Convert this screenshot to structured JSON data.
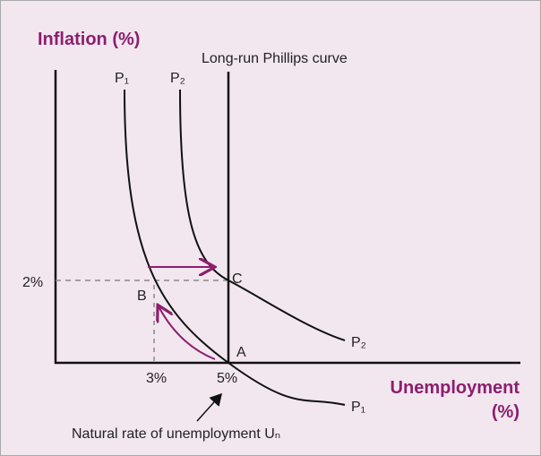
{
  "y_axis_label": "Inflation (%)",
  "x_axis_label": {
    "line1": "Unemployment",
    "line2": "(%)"
  },
  "lrpc_label": "Long-run Phillips curve",
  "curve_labels": {
    "p1_top": "P₁",
    "p2_top": "P₂",
    "p1_end": "P₁",
    "p2_end": "P₂"
  },
  "points": {
    "a": "A",
    "b": "B",
    "c": "C"
  },
  "ticks": {
    "y_2": "2%",
    "x_3": "3%",
    "x_5": "5%"
  },
  "annotation": "Natural rate of unemployment Uₙ"
}
